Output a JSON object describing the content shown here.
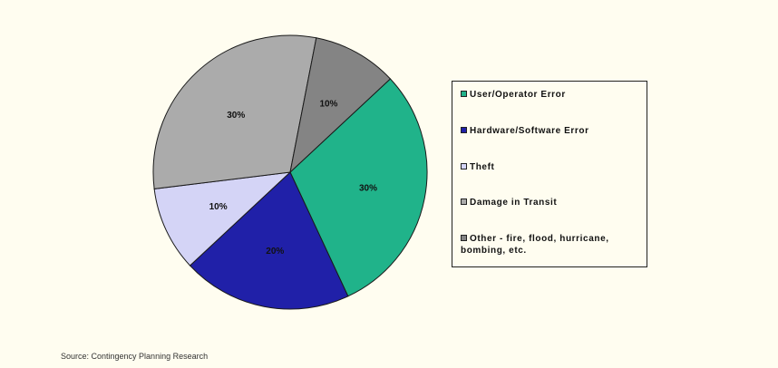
{
  "chart_data": {
    "type": "pie",
    "categories": [
      "User/Operator Error",
      "Hardware/Software Error",
      "Theft",
      "Damage in Transit",
      "Other - fire, flood, hurricane, bombing, etc."
    ],
    "values": [
      30,
      20,
      10,
      30,
      10
    ],
    "value_labels": [
      "30%",
      "20%",
      "10%",
      "30%",
      "10%"
    ],
    "colors": [
      "#20b38a",
      "#2020a8",
      "#d4d4f6",
      "#ababab",
      "#848484"
    ],
    "legend_position": "right",
    "slice_order": "clockwise-from-top-right"
  },
  "source": "Source:  Contingency Planning Research"
}
